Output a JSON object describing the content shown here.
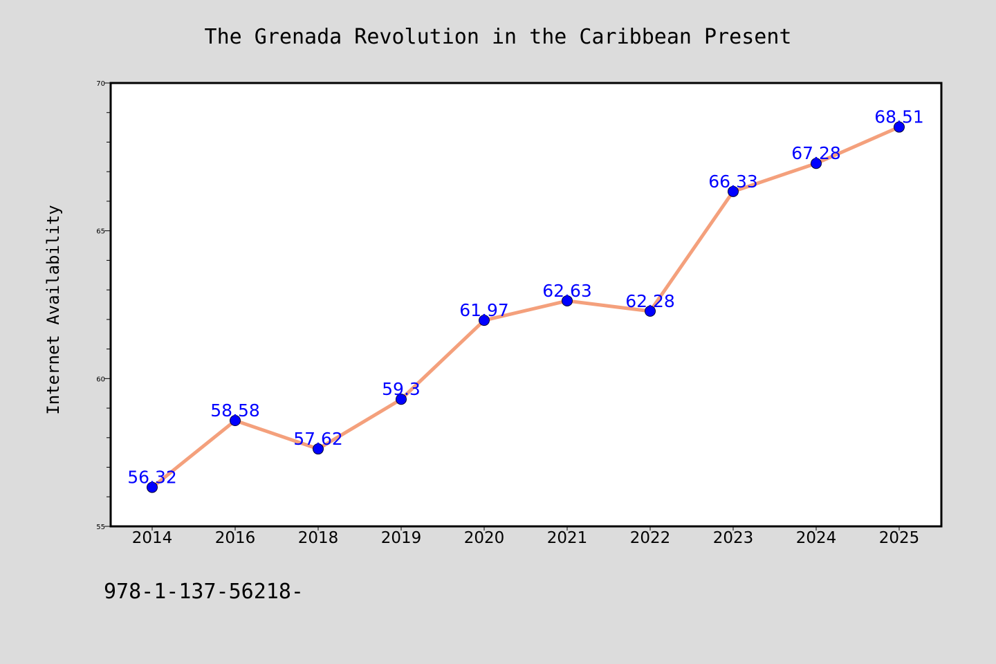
{
  "chart_data": {
    "type": "line",
    "title": "The Grenada Revolution in the Caribbean Present",
    "xlabel": "",
    "ylabel": "Internet Availability",
    "categories": [
      "2014",
      "2016",
      "2018",
      "2019",
      "2020",
      "2021",
      "2022",
      "2023",
      "2024",
      "2025"
    ],
    "series": [
      {
        "values": [
          56.32,
          58.58,
          57.62,
          59.3,
          61.97,
          62.63,
          62.28,
          66.33,
          67.28,
          68.51
        ],
        "labels": [
          "56.32",
          "58.58",
          "57.62",
          "59.3",
          "61.97",
          "62.63",
          "62.28",
          "66.33",
          "67.28",
          "68.51"
        ]
      }
    ],
    "ylim": [
      55,
      70
    ],
    "yticks": [
      "55",
      "60",
      "65",
      "70"
    ],
    "grid": false,
    "legend": "none",
    "colors": {
      "line": "#f4a07c",
      "marker": "#0000ff",
      "label": "#0000ff",
      "background": "#dcdcdc",
      "plot_background": "#ffffff"
    }
  },
  "footer": {
    "code": "978-1-137-56218-"
  }
}
